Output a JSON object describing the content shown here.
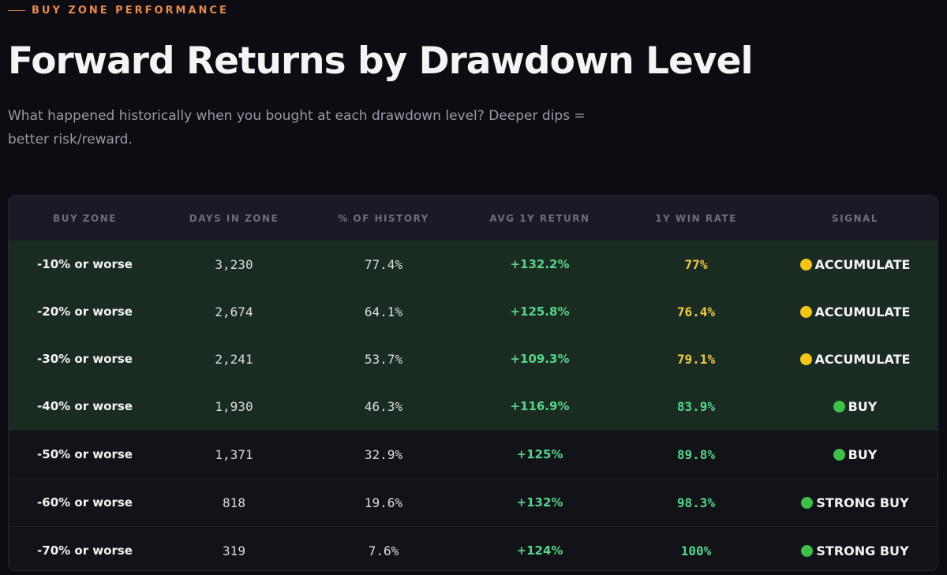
{
  "header": {
    "eyebrow": "BUY ZONE PERFORMANCE",
    "title": "Forward Returns by Drawdown Level",
    "subtitle": "What happened historically when you bought at each drawdown level? Deeper dips = better risk/reward."
  },
  "table": {
    "columns": [
      "BUY ZONE",
      "DAYS IN ZONE",
      "% OF HISTORY",
      "AVG 1Y RETURN",
      "1Y WIN RATE",
      "SIGNAL"
    ],
    "rows": [
      [
        "-10% or worse",
        "3,230",
        "77.4%",
        "+132.2%",
        "77%",
        "ACCUMULATE"
      ],
      [
        "-20% or worse",
        "2,674",
        "64.1%",
        "+125.8%",
        "76.4%",
        "ACCUMULATE"
      ],
      [
        "-30% or worse",
        "2,241",
        "53.7%",
        "+109.3%",
        "79.1%",
        "ACCUMULATE"
      ],
      [
        "-40% or worse",
        "1,930",
        "46.3%",
        "+116.9%",
        "83.9%",
        "BUY"
      ],
      [
        "-50% or worse",
        "1,371",
        "32.9%",
        "+125%",
        "89.8%",
        "BUY"
      ],
      [
        "-60% or worse",
        "818",
        "19.6%",
        "+132%",
        "98.3%",
        "STRONG BUY"
      ],
      [
        "-70% or worse",
        "319",
        "7.6%",
        "+124%",
        "100%",
        "STRONG BUY"
      ]
    ]
  }
}
